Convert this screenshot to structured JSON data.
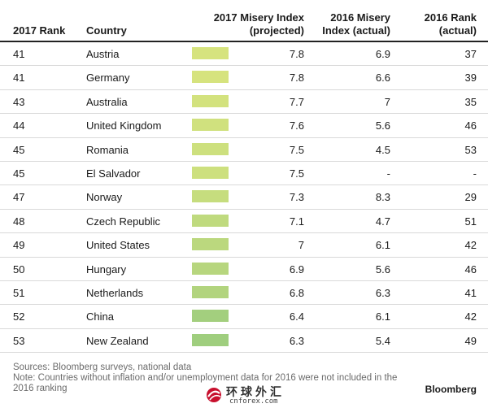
{
  "header": {
    "rank_2017": "2017 Rank",
    "country": "Country",
    "misery_2017_line1": "2017 Misery Index",
    "misery_2017_line2": "(projected)",
    "misery_2016_line1": "2016 Misery",
    "misery_2016_line2": "Index (actual)",
    "rank_2016_line1": "2016 Rank",
    "rank_2016_line2": "(actual)"
  },
  "rows": [
    {
      "rank": "41",
      "country": "Austria",
      "bar_color": "#d6e37e",
      "misery_2017": "7.8",
      "misery_2016": "6.9",
      "rank_2016": "37"
    },
    {
      "rank": "41",
      "country": "Germany",
      "bar_color": "#d6e37e",
      "misery_2017": "7.8",
      "misery_2016": "6.6",
      "rank_2016": "39"
    },
    {
      "rank": "43",
      "country": "Australia",
      "bar_color": "#d3e27e",
      "misery_2017": "7.7",
      "misery_2016": "7",
      "rank_2016": "35"
    },
    {
      "rank": "44",
      "country": "United Kingdom",
      "bar_color": "#d0e17e",
      "misery_2017": "7.6",
      "misery_2016": "5.6",
      "rank_2016": "46"
    },
    {
      "rank": "45",
      "country": "Romania",
      "bar_color": "#cde07e",
      "misery_2017": "7.5",
      "misery_2016": "4.5",
      "rank_2016": "53"
    },
    {
      "rank": "45",
      "country": "El Salvador",
      "bar_color": "#cde07e",
      "misery_2017": "7.5",
      "misery_2016": "-",
      "rank_2016": "-"
    },
    {
      "rank": "47",
      "country": "Norway",
      "bar_color": "#c6dd7e",
      "misery_2017": "7.3",
      "misery_2016": "8.3",
      "rank_2016": "29"
    },
    {
      "rank": "48",
      "country": "Czech Republic",
      "bar_color": "#bfda7e",
      "misery_2017": "7.1",
      "misery_2016": "4.7",
      "rank_2016": "51"
    },
    {
      "rank": "49",
      "country": "United States",
      "bar_color": "#bbd87e",
      "misery_2017": "7",
      "misery_2016": "6.1",
      "rank_2016": "42"
    },
    {
      "rank": "50",
      "country": "Hungary",
      "bar_color": "#b7d67e",
      "misery_2017": "6.9",
      "misery_2016": "5.6",
      "rank_2016": "46"
    },
    {
      "rank": "51",
      "country": "Netherlands",
      "bar_color": "#b2d47e",
      "misery_2017": "6.8",
      "misery_2016": "6.3",
      "rank_2016": "41"
    },
    {
      "rank": "52",
      "country": "China",
      "bar_color": "#a3cf7e",
      "misery_2017": "6.4",
      "misery_2016": "6.1",
      "rank_2016": "42"
    },
    {
      "rank": "53",
      "country": "New Zealand",
      "bar_color": "#9fce7e",
      "misery_2017": "6.3",
      "misery_2016": "5.4",
      "rank_2016": "49"
    }
  ],
  "footer": {
    "sources": "Sources: Bloomberg surveys, national data",
    "note": "Note: Countries without inflation and/or unemployment data for 2016 were not included in the 2016 ranking"
  },
  "brand": "Bloomberg",
  "watermark": {
    "chinese": "环球外汇",
    "url": "cnforex.com",
    "icon": "globe-logo-icon"
  }
}
